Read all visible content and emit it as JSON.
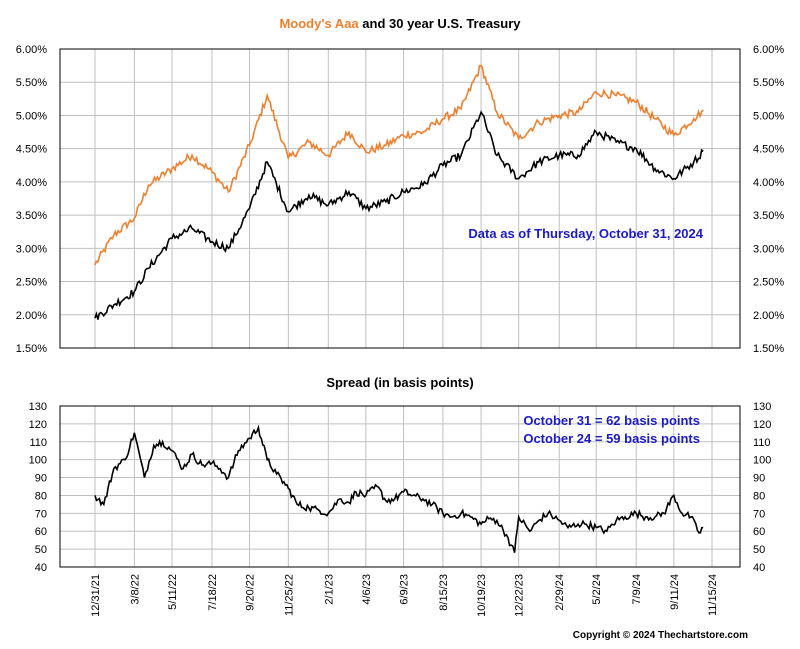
{
  "colors": {
    "aaa": "#f07f2d",
    "treasury": "#000000",
    "spread": "#000000",
    "annotation": "#1a1ac8",
    "grid": "#c0c0c0",
    "frame": "#000000"
  },
  "chart_data": [
    {
      "type": "line",
      "title_parts": [
        "Moody's Aaa",
        " and 30 year U.S. Treasury"
      ],
      "annotation": "Data as of Thursday, October 31, 2024",
      "ylim": [
        1.5,
        6.0
      ],
      "yticks": [
        "1.50%",
        "2.00%",
        "2.50%",
        "3.00%",
        "3.50%",
        "4.00%",
        "4.50%",
        "5.00%",
        "5.50%",
        "6.00%"
      ],
      "grid": true,
      "series": [
        {
          "name": "Moody's Aaa",
          "color": "#f07f2d",
          "x": [
            "12/31/21",
            "2/1/22",
            "3/8/22",
            "4/1/22",
            "5/11/22",
            "6/14/22",
            "7/18/22",
            "8/15/22",
            "9/20/22",
            "10/20/22",
            "11/25/22",
            "12/30/22",
            "2/1/23",
            "3/8/23",
            "4/6/23",
            "5/10/23",
            "6/9/23",
            "7/12/23",
            "8/15/23",
            "9/15/23",
            "10/19/23",
            "11/15/23",
            "12/22/23",
            "1/25/24",
            "2/29/24",
            "4/1/24",
            "5/2/24",
            "6/5/24",
            "7/9/24",
            "8/10/24",
            "9/11/24",
            "10/15/24",
            "10/31/24"
          ],
          "values": [
            2.75,
            3.2,
            3.45,
            3.95,
            4.2,
            4.4,
            4.15,
            3.85,
            4.55,
            5.3,
            4.35,
            4.6,
            4.4,
            4.75,
            4.45,
            4.55,
            4.7,
            4.75,
            4.95,
            5.1,
            5.75,
            5.05,
            4.65,
            4.9,
            5.0,
            5.05,
            5.35,
            5.3,
            5.2,
            4.95,
            4.7,
            4.95,
            5.08
          ]
        },
        {
          "name": "30 year U.S. Treasury",
          "color": "#000000",
          "x": [
            "12/31/21",
            "2/1/22",
            "3/8/22",
            "4/1/22",
            "5/11/22",
            "6/14/22",
            "7/18/22",
            "8/15/22",
            "9/20/22",
            "10/20/22",
            "11/25/22",
            "12/30/22",
            "2/1/23",
            "3/8/23",
            "4/6/23",
            "5/10/23",
            "6/9/23",
            "7/12/23",
            "8/15/23",
            "9/15/23",
            "10/19/23",
            "11/15/23",
            "12/22/23",
            "1/25/24",
            "2/29/24",
            "4/1/24",
            "5/2/24",
            "6/5/24",
            "7/9/24",
            "8/10/24",
            "9/11/24",
            "10/15/24",
            "10/31/24"
          ],
          "values": [
            1.95,
            2.15,
            2.35,
            2.7,
            3.15,
            3.3,
            3.1,
            3.0,
            3.6,
            4.3,
            3.55,
            3.8,
            3.65,
            3.85,
            3.6,
            3.7,
            3.85,
            3.95,
            4.25,
            4.4,
            5.05,
            4.4,
            4.05,
            4.3,
            4.4,
            4.4,
            4.75,
            4.6,
            4.5,
            4.2,
            4.05,
            4.3,
            4.46
          ]
        }
      ]
    },
    {
      "type": "line",
      "title": "Spread (in basis points)",
      "annotations": [
        "October 31 = 62 basis points",
        "October 24 = 59 basis points"
      ],
      "ylim": [
        40,
        130
      ],
      "yticks": [
        "40",
        "50",
        "60",
        "70",
        "80",
        "90",
        "100",
        "110",
        "120",
        "130"
      ],
      "xticks": [
        "12/31/21",
        "3/8/22",
        "5/11/22",
        "7/18/22",
        "9/20/22",
        "11/25/22",
        "2/1/23",
        "4/6/23",
        "6/9/23",
        "8/15/23",
        "10/19/23",
        "12/22/23",
        "2/29/24",
        "5/2/24",
        "7/9/24",
        "9/11/24",
        "11/15/24"
      ],
      "grid": true,
      "series": [
        {
          "name": "Spread",
          "color": "#000000",
          "x": [
            "12/31/21",
            "1/15/22",
            "2/1/22",
            "2/20/22",
            "3/8/22",
            "3/25/22",
            "4/10/22",
            "4/25/22",
            "5/11/22",
            "5/30/22",
            "6/14/22",
            "7/1/22",
            "7/18/22",
            "8/1/22",
            "8/15/22",
            "9/1/22",
            "9/20/22",
            "10/5/22",
            "10/20/22",
            "11/5/22",
            "11/25/22",
            "12/10/22",
            "12/30/22",
            "1/15/23",
            "2/1/23",
            "2/20/23",
            "3/8/23",
            "3/20/23",
            "4/6/23",
            "4/25/23",
            "5/10/23",
            "5/25/23",
            "6/9/23",
            "6/25/23",
            "7/12/23",
            "7/28/23",
            "8/15/23",
            "8/30/23",
            "9/15/23",
            "10/1/23",
            "10/19/23",
            "11/1/23",
            "11/15/23",
            "12/1/23",
            "12/15/23",
            "12/22/23",
            "1/10/24",
            "1/25/24",
            "2/10/24",
            "2/29/24",
            "3/15/24",
            "4/1/24",
            "4/15/24",
            "5/2/24",
            "5/20/24",
            "6/5/24",
            "6/20/24",
            "7/9/24",
            "7/25/24",
            "8/10/24",
            "8/25/24",
            "9/11/24",
            "9/25/24",
            "10/10/24",
            "10/24/24",
            "10/31/24"
          ],
          "values": [
            80,
            75,
            95,
            100,
            115,
            90,
            108,
            110,
            105,
            95,
            103,
            97,
            98,
            95,
            90,
            105,
            112,
            118,
            100,
            92,
            84,
            75,
            73,
            72,
            70,
            78,
            76,
            82,
            80,
            85,
            77,
            78,
            82,
            80,
            78,
            75,
            70,
            68,
            70,
            68,
            64,
            67,
            66,
            58,
            48,
            68,
            60,
            66,
            70,
            66,
            62,
            64,
            64,
            62,
            60,
            66,
            68,
            70,
            68,
            68,
            70,
            80,
            70,
            68,
            59,
            62
          ]
        }
      ]
    }
  ],
  "copyright": "Copyright © 2024 Thechartstore.com"
}
